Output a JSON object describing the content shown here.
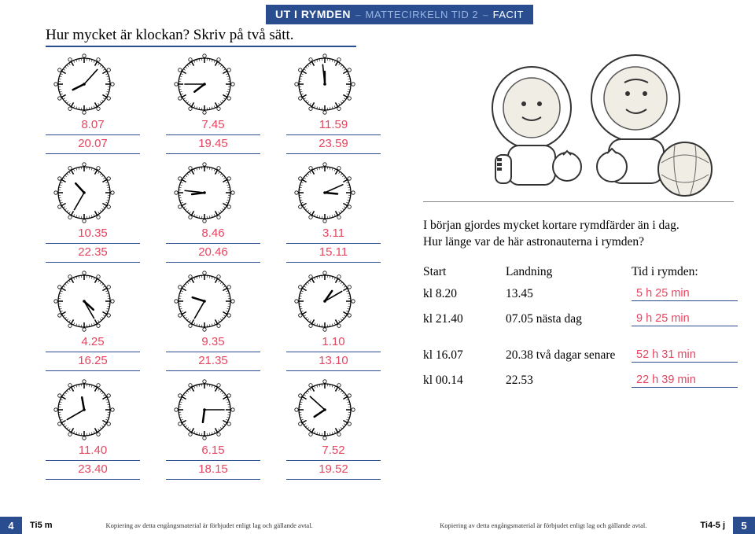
{
  "header": {
    "pre": "UT I RYMDEN",
    "sep1": "–",
    "mid": "MATTECIRKELN TID 2",
    "sep2": "–",
    "post": "FACIT"
  },
  "title": "Hur mycket är klockan? Skriv på två sätt.",
  "clocks": [
    {
      "h": 8,
      "m": 7,
      "a1": "8.07",
      "a2": "20.07"
    },
    {
      "h": 7,
      "m": 45,
      "a1": "7.45",
      "a2": "19.45"
    },
    {
      "h": 11,
      "m": 59,
      "a1": "11.59",
      "a2": "23.59"
    },
    {
      "h": 10,
      "m": 35,
      "a1": "10.35",
      "a2": "22.35"
    },
    {
      "h": 8,
      "m": 46,
      "a1": "8.46",
      "a2": "20.46"
    },
    {
      "h": 3,
      "m": 11,
      "a1": "3.11",
      "a2": "15.11"
    },
    {
      "h": 4,
      "m": 25,
      "a1": "4.25",
      "a2": "16.25"
    },
    {
      "h": 9,
      "m": 35,
      "a1": "9.35",
      "a2": "21.35"
    },
    {
      "h": 1,
      "m": 10,
      "a1": "1.10",
      "a2": "13.10"
    },
    {
      "h": 11,
      "m": 40,
      "a1": "11.40",
      "a2": "23.40"
    },
    {
      "h": 6,
      "m": 15,
      "a1": "6.15",
      "a2": "18.15"
    },
    {
      "h": 7,
      "m": 52,
      "a1": "7.52",
      "a2": "19.52"
    }
  ],
  "intro1": "I början gjordes mycket kortare rymdfärder än i dag.",
  "intro2": "Hur länge var de här astronauterna i rymden?",
  "tbl": {
    "h1": "Start",
    "h2": "Landning",
    "h3": "Tid i rymden:",
    "rows": [
      {
        "c1": "kl 8.20",
        "c2": "13.45",
        "ans": "5 h 25 min"
      },
      {
        "c1": "kl 21.40",
        "c2": "07.05 nästa dag",
        "ans": "9 h 25 min"
      },
      {
        "c1": "kl 16.07",
        "c2": "20.38 två dagar senare",
        "ans": "52 h 31 min"
      },
      {
        "c1": "kl 00.14",
        "c2": "22.53",
        "ans": "22 h 39 min"
      }
    ]
  },
  "footer": {
    "pageL": "4",
    "labelL": "Ti5 m",
    "labelR": "Ti4-5 j",
    "pageR": "5",
    "copy": "Kopiering av detta engångsmaterial är förbjudet enligt lag och gällande avtal."
  },
  "colors": {
    "accent": "#2a4d8f",
    "answer": "#e64560"
  }
}
